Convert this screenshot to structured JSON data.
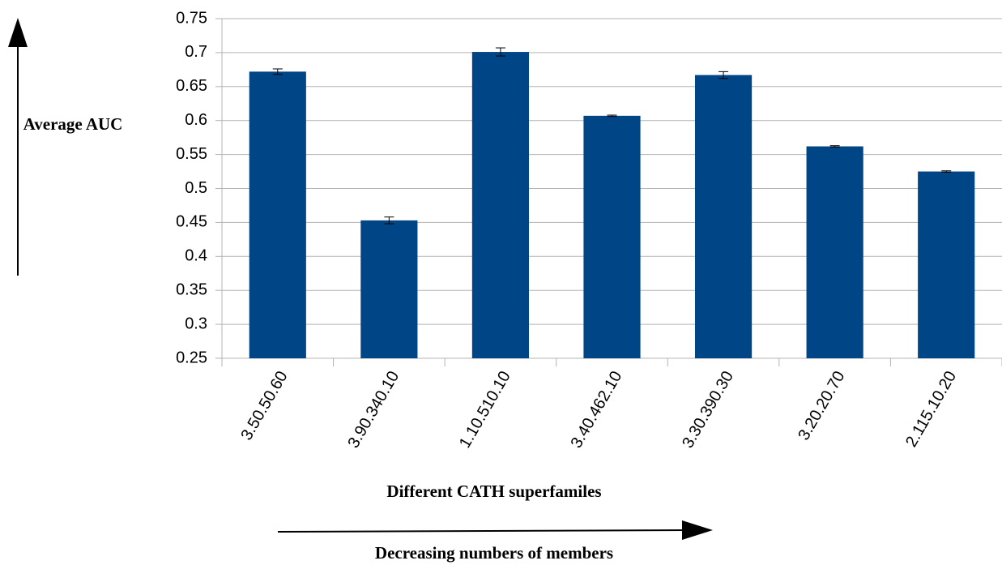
{
  "chart_data": {
    "type": "bar",
    "ylabel": "Average AUC",
    "xlabel": "Different CATH superfamiles",
    "annotation": "Decreasing numbers of members",
    "categories": [
      "3.50.50.60",
      "3.90.340.10",
      "1.10.510.10",
      "3.40.462.10",
      "3.30.390.30",
      "3.20.20.70",
      "2.115.10.20"
    ],
    "values": [
      0.672,
      0.453,
      0.701,
      0.607,
      0.667,
      0.562,
      0.525
    ],
    "errors": [
      0.004,
      0.005,
      0.006,
      0.001,
      0.005,
      0.001,
      0.001
    ],
    "color": "#004586",
    "ylim": [
      0.25,
      0.75
    ],
    "yticks": [
      0.25,
      0.3,
      0.35,
      0.4,
      0.45,
      0.5,
      0.55,
      0.6,
      0.65,
      0.7,
      0.75
    ],
    "grid": true
  }
}
